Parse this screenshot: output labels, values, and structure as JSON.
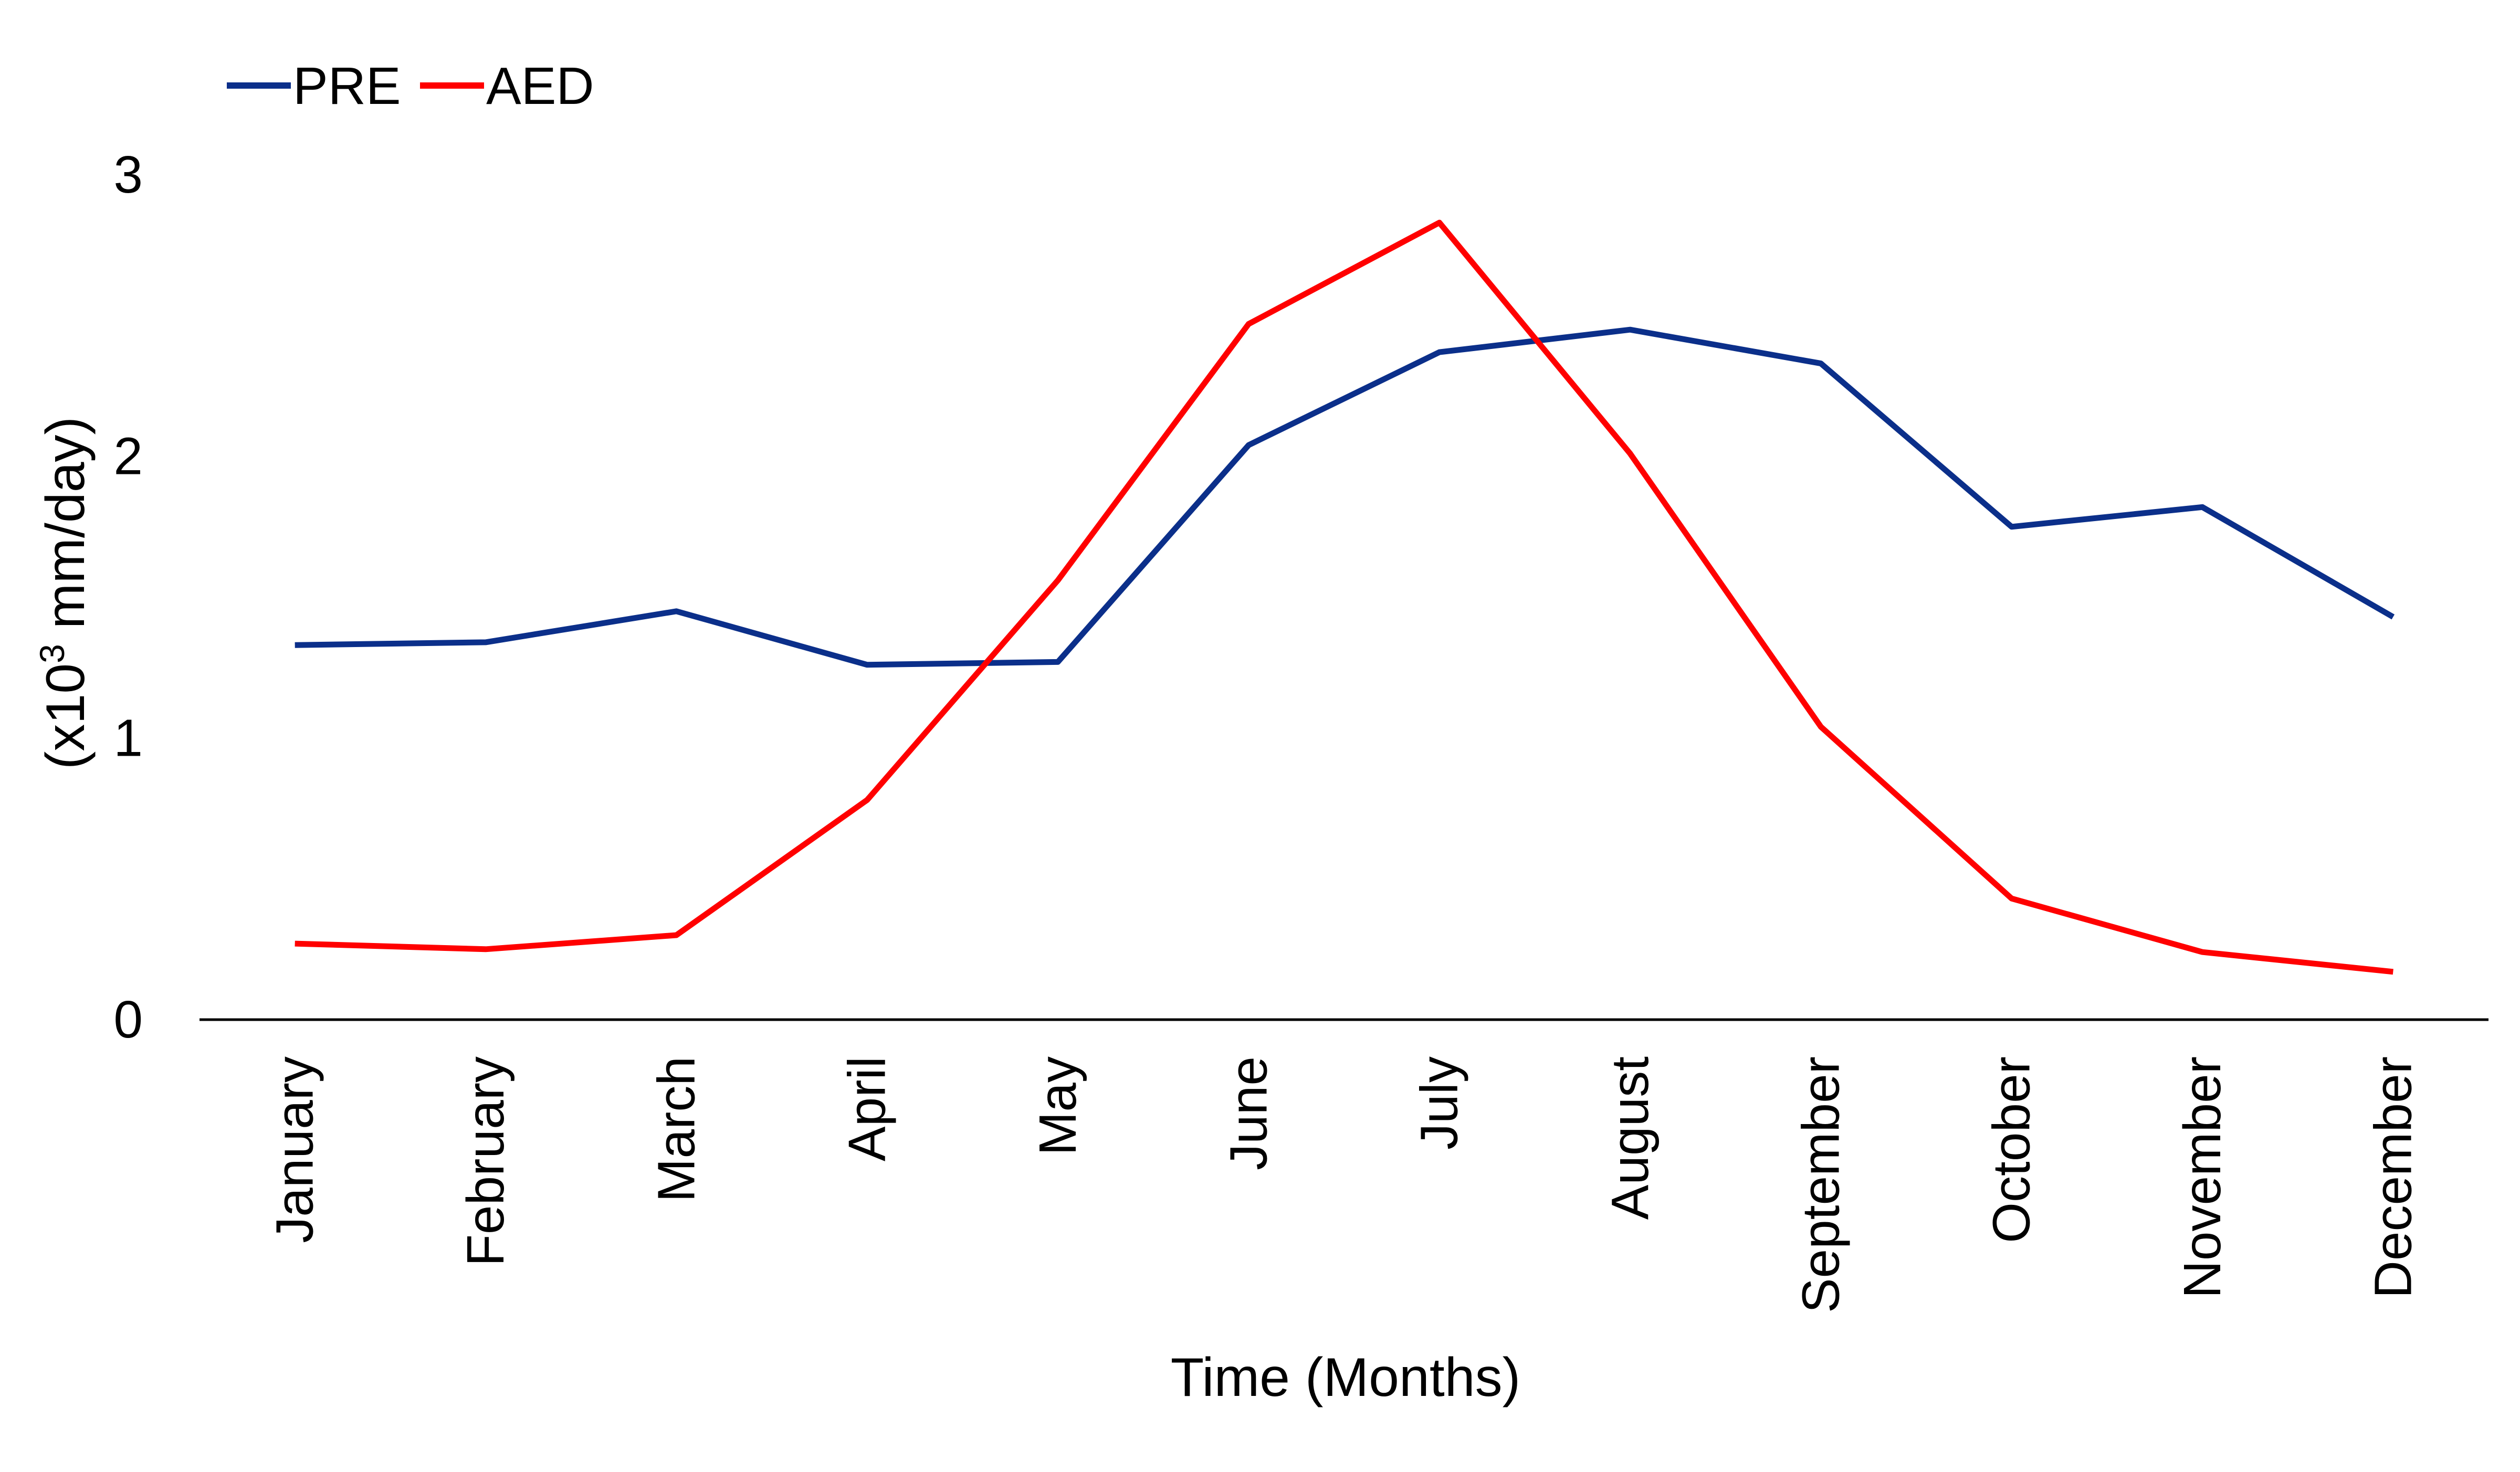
{
  "chart_data": {
    "type": "line",
    "xlabel": "Time (Months)",
    "ylabel_prefix": "(x10",
    "ylabel_superscript": "3",
    "ylabel_suffix": " mm/day)",
    "ylim": [
      0,
      3
    ],
    "yticks": [
      0,
      1,
      2,
      3
    ],
    "grid": false,
    "legend_position": "top-left",
    "categories": [
      "January",
      "February",
      "March",
      "April",
      "May",
      "June",
      "July",
      "August",
      "September",
      "October",
      "November",
      "December"
    ],
    "series": [
      {
        "name": "PRE",
        "color": "#0B2F8A",
        "values": [
          1.33,
          1.34,
          1.45,
          1.26,
          1.27,
          2.04,
          2.37,
          2.45,
          2.33,
          1.75,
          1.82,
          1.43
        ]
      },
      {
        "name": "AED",
        "color": "#FF0000",
        "values": [
          0.27,
          0.25,
          0.3,
          0.78,
          1.56,
          2.47,
          2.83,
          2.01,
          1.04,
          0.43,
          0.24,
          0.17
        ]
      }
    ]
  }
}
